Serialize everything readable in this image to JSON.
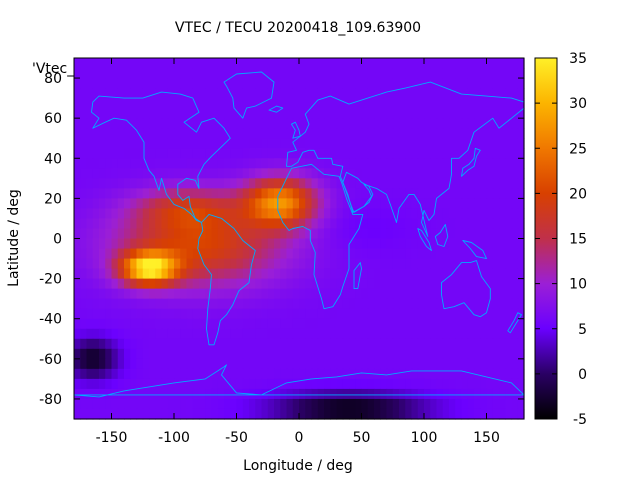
{
  "chart_data": {
    "type": "heatmap",
    "title": "VTEC / TECU 20200418_109.63900",
    "xlabel": "Longitude / deg",
    "ylabel": "Latitude / deg",
    "xlim": [
      -180,
      180
    ],
    "ylim": [
      -90,
      90
    ],
    "x_ticks": [
      -150,
      -100,
      -50,
      0,
      50,
      100,
      150
    ],
    "y_ticks": [
      -80,
      -60,
      -40,
      -20,
      0,
      20,
      40,
      60,
      80
    ],
    "colorbar": {
      "range": [
        -5,
        35
      ],
      "ticks": [
        -5,
        0,
        5,
        10,
        15,
        20,
        25,
        30,
        35
      ],
      "palette": [
        "#000000",
        "#2a0064",
        "#6a00ff",
        "#9b1fd6",
        "#c0304a",
        "#d84000",
        "#f07800",
        "#fcb400",
        "#fff028"
      ]
    },
    "legend_label": "'Vtec_",
    "background_vtec": 6,
    "features": [
      {
        "name": "primary anomaly crest (Atlantic/Africa)",
        "lon": -15,
        "lat": 18,
        "peak_vtec": 26,
        "lon_width": 28,
        "lat_width": 12
      },
      {
        "name": "secondary crest (SE Pacific)",
        "lon": -120,
        "lat": -15,
        "peak_vtec": 31,
        "lon_width": 22,
        "lat_width": 8
      },
      {
        "name": "equatorial band (S. America / Pacific)",
        "lon": -80,
        "lat": -3,
        "peak_vtec": 20,
        "lon_width": 65,
        "lat_width": 20
      },
      {
        "name": "northern crest (Caribbean)",
        "lon": -90,
        "lat": 15,
        "peak_vtec": 14,
        "lon_width": 40,
        "lat_width": 10
      },
      {
        "name": "Indian Ocean band",
        "lon": 50,
        "lat": 5,
        "peak_vtec": 5,
        "lon_width": 40,
        "lat_width": 12
      },
      {
        "name": "south polar depletion",
        "lon": 40,
        "lat": -85,
        "peak_vtec": -4,
        "lon_width": 60,
        "lat_width": 8
      },
      {
        "name": "Southern Ocean depletion",
        "lon": -165,
        "lat": -60,
        "peak_vtec": -3,
        "lon_width": 20,
        "lat_width": 10
      }
    ]
  }
}
